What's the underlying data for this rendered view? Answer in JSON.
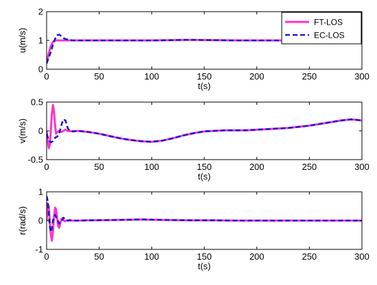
{
  "chart_data": [
    {
      "type": "line",
      "xlabel": "t(s)",
      "ylabel": "u(m/s)",
      "xlim": [
        0,
        300
      ],
      "ylim": [
        0,
        2
      ],
      "xticks": [
        0,
        50,
        100,
        150,
        200,
        250,
        300
      ],
      "yticks": [
        0,
        1,
        2
      ],
      "grid": false,
      "legend": "top-right",
      "series": [
        {
          "name": "FT-LOS",
          "color": "#ff33cc",
          "dash": "solid",
          "x": [
            0,
            2,
            4,
            6,
            8,
            10,
            15,
            20,
            40,
            60,
            80,
            100,
            120,
            130,
            140,
            160,
            180,
            200,
            220,
            240,
            260,
            280,
            300
          ],
          "y": [
            0.2,
            0.55,
            0.8,
            0.95,
            1.0,
            1.0,
            1.0,
            1.0,
            1.0,
            1.0,
            1.0,
            1.0,
            1.01,
            1.02,
            1.02,
            1.01,
            1.0,
            1.0,
            1.0,
            1.0,
            1.0,
            1.0,
            1.0
          ]
        },
        {
          "name": "EC-LOS",
          "color": "#1a1acc",
          "dash": "dashed",
          "x": [
            0,
            2,
            4,
            6,
            8,
            10,
            12,
            14,
            16,
            18,
            20,
            25,
            30,
            40,
            60,
            80,
            100,
            120,
            130,
            140,
            160,
            180,
            200,
            220,
            240,
            260,
            280,
            300
          ],
          "y": [
            0.2,
            0.4,
            0.6,
            0.85,
            1.05,
            1.18,
            1.2,
            1.15,
            1.08,
            1.05,
            1.03,
            1.0,
            1.0,
            1.0,
            1.0,
            1.0,
            1.0,
            1.01,
            1.02,
            1.02,
            1.01,
            1.0,
            1.0,
            1.0,
            1.0,
            1.0,
            1.0,
            1.0
          ]
        }
      ]
    },
    {
      "type": "line",
      "xlabel": "t(s)",
      "ylabel": "v(m/s)",
      "xlim": [
        0,
        300
      ],
      "ylim": [
        -0.5,
        0.5
      ],
      "xticks": [
        0,
        50,
        100,
        150,
        200,
        250,
        300
      ],
      "yticks": [
        -0.5,
        0,
        0.5
      ],
      "grid": false,
      "series": [
        {
          "name": "FT-LOS",
          "color": "#ff33cc",
          "dash": "solid",
          "x": [
            0,
            1,
            2,
            3,
            4,
            5,
            6,
            7,
            8,
            9,
            10,
            12,
            14,
            16,
            18,
            20,
            25,
            30,
            40,
            50,
            60,
            70,
            80,
            90,
            100,
            110,
            120,
            130,
            140,
            150,
            160,
            170,
            180,
            190,
            200,
            210,
            220,
            230,
            240,
            250,
            260,
            270,
            280,
            285,
            290,
            295,
            300
          ],
          "y": [
            0.0,
            -0.15,
            -0.3,
            -0.25,
            0.0,
            0.3,
            0.45,
            0.35,
            0.1,
            -0.05,
            -0.02,
            0.0,
            -0.02,
            0.0,
            0.02,
            0.0,
            -0.01,
            0.0,
            -0.02,
            -0.05,
            -0.09,
            -0.13,
            -0.16,
            -0.18,
            -0.19,
            -0.17,
            -0.13,
            -0.08,
            -0.04,
            -0.01,
            0.0,
            0.01,
            0.01,
            0.01,
            0.02,
            0.03,
            0.04,
            0.05,
            0.07,
            0.09,
            0.12,
            0.15,
            0.18,
            0.19,
            0.2,
            0.19,
            0.18
          ]
        },
        {
          "name": "EC-LOS",
          "color": "#1a1acc",
          "dash": "dashed",
          "x": [
            0,
            2,
            4,
            6,
            8,
            10,
            12,
            14,
            16,
            18,
            20,
            22,
            25,
            30,
            40,
            50,
            60,
            70,
            80,
            90,
            100,
            110,
            120,
            130,
            140,
            150,
            160,
            170,
            180,
            190,
            200,
            210,
            220,
            230,
            240,
            250,
            260,
            270,
            280,
            285,
            290,
            295,
            300
          ],
          "y": [
            -0.05,
            -0.15,
            -0.2,
            -0.18,
            -0.12,
            -0.1,
            -0.05,
            0.1,
            0.2,
            0.18,
            0.05,
            0.0,
            -0.01,
            0.0,
            -0.02,
            -0.05,
            -0.09,
            -0.13,
            -0.16,
            -0.18,
            -0.19,
            -0.17,
            -0.13,
            -0.08,
            -0.04,
            -0.01,
            0.0,
            0.01,
            0.01,
            0.01,
            0.02,
            0.03,
            0.04,
            0.05,
            0.07,
            0.09,
            0.12,
            0.15,
            0.18,
            0.19,
            0.2,
            0.19,
            0.18
          ]
        }
      ]
    },
    {
      "type": "line",
      "xlabel": "t(s)",
      "ylabel": "r(rad/s)",
      "xlim": [
        0,
        300
      ],
      "ylim": [
        -1,
        1
      ],
      "xticks": [
        0,
        50,
        100,
        150,
        200,
        250,
        300
      ],
      "yticks": [
        -1,
        0,
        1
      ],
      "grid": false,
      "series": [
        {
          "name": "FT-LOS",
          "color": "#ff33cc",
          "dash": "solid",
          "x": [
            0,
            1,
            2,
            3,
            4,
            5,
            6,
            7,
            8,
            9,
            10,
            11,
            12,
            13,
            14,
            15,
            16,
            17,
            18,
            20,
            25,
            30,
            40,
            60,
            80,
            90,
            100,
            120,
            140,
            160,
            180,
            200,
            220,
            240,
            260,
            280,
            300
          ],
          "y": [
            0.0,
            0.6,
            0.5,
            0.0,
            -0.5,
            -0.7,
            -0.4,
            0.1,
            0.45,
            0.4,
            0.1,
            -0.2,
            -0.25,
            -0.1,
            0.05,
            0.08,
            0.02,
            -0.02,
            0.0,
            0.0,
            0.0,
            0.0,
            0.01,
            0.02,
            0.03,
            0.04,
            0.03,
            0.02,
            0.01,
            0.01,
            0.0,
            0.0,
            0.0,
            0.0,
            0.0,
            0.0,
            0.0
          ]
        },
        {
          "name": "EC-LOS",
          "color": "#1a1acc",
          "dash": "dashed",
          "x": [
            0,
            1,
            2,
            3,
            4,
            5,
            6,
            8,
            10,
            12,
            14,
            16,
            18,
            20,
            22,
            25,
            30,
            40,
            60,
            80,
            90,
            100,
            120,
            140,
            160,
            180,
            200,
            220,
            240,
            260,
            280,
            300
          ],
          "y": [
            0.85,
            0.7,
            0.3,
            -0.2,
            -0.4,
            -0.3,
            0.0,
            0.2,
            0.05,
            -0.1,
            -0.05,
            0.1,
            0.05,
            0.0,
            0.02,
            0.0,
            0.0,
            0.01,
            0.02,
            0.03,
            0.04,
            0.03,
            0.02,
            0.01,
            0.01,
            0.0,
            0.0,
            0.0,
            0.0,
            0.0,
            0.0,
            0.0
          ]
        }
      ]
    }
  ]
}
